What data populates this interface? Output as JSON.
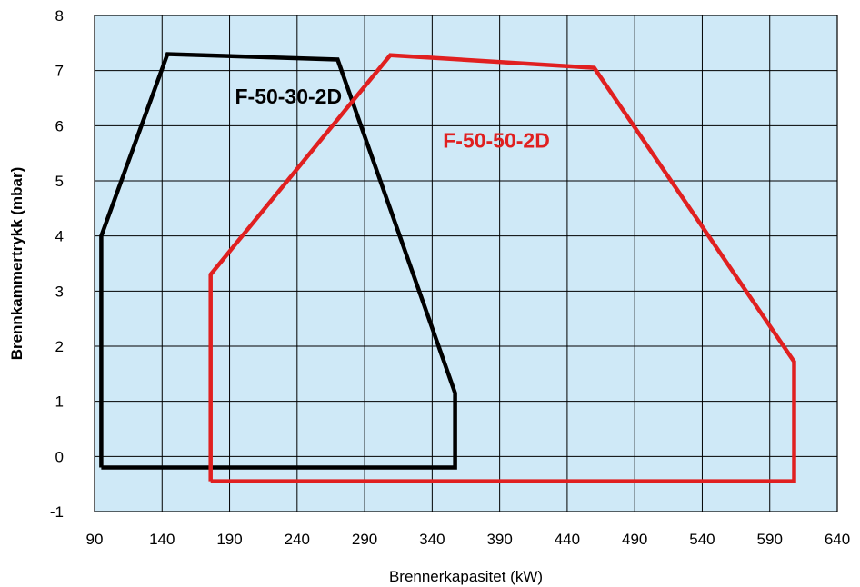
{
  "chart_data": {
    "type": "line",
    "title": "",
    "xlabel": "Brennerkapasitet (kW)",
    "ylabel": "Brennkammertrykk (mbar)",
    "xlim": [
      90,
      640
    ],
    "ylim": [
      -1,
      8
    ],
    "x_ticks": [
      "90",
      "140",
      "190",
      "240",
      "290",
      "340",
      "390",
      "440",
      "490",
      "540",
      "590",
      "640"
    ],
    "y_ticks": [
      "8",
      "7",
      "6",
      "5",
      "4",
      "3",
      "2",
      "1",
      "0",
      "-1"
    ],
    "x_tick_values": [
      90,
      140,
      190,
      240,
      290,
      340,
      390,
      440,
      490,
      540,
      590,
      640
    ],
    "y_tick_values": [
      8,
      7,
      6,
      5,
      4,
      3,
      2,
      1,
      0,
      -1
    ],
    "grid": true,
    "colors": {
      "plot_background": "#cfe9f7",
      "grid": "#000000"
    },
    "series": [
      {
        "name": "F-50-30-2D",
        "color": "#000000",
        "points": [
          [
            95,
            -0.2
          ],
          [
            95,
            4.0
          ],
          [
            144,
            7.3
          ],
          [
            270,
            7.2
          ],
          [
            357,
            1.15
          ],
          [
            357,
            -0.2
          ],
          [
            95,
            -0.2
          ]
        ]
      },
      {
        "name": "F-50-50-2D",
        "color": "#e02020",
        "points": [
          [
            176,
            -0.45
          ],
          [
            176,
            3.3
          ],
          [
            309,
            7.28
          ],
          [
            460,
            7.05
          ],
          [
            608,
            1.72
          ],
          [
            608,
            -0.45
          ],
          [
            176,
            -0.45
          ]
        ]
      }
    ],
    "annotations": [
      {
        "text": "F-50-30-2D",
        "x": 194,
        "y": 6.4,
        "color": "#000000"
      },
      {
        "text": "F-50-50-2D",
        "x": 348,
        "y": 5.6,
        "color": "#e02020"
      }
    ]
  }
}
